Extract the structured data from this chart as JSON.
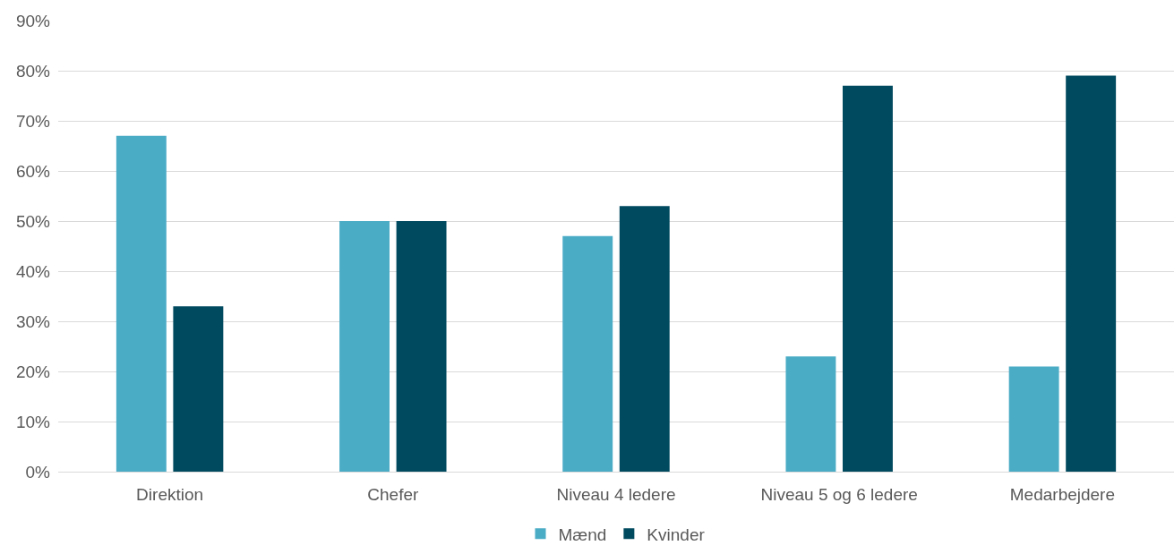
{
  "chart_data": {
    "type": "bar",
    "categories": [
      "Direktion",
      "Chefer",
      "Niveau 4 ledere",
      "Niveau 5 og 6 ledere",
      "Medarbejdere"
    ],
    "series": [
      {
        "name": "Mænd",
        "color": "#4bacc6",
        "values": [
          67,
          50,
          47,
          23,
          21
        ]
      },
      {
        "name": "Kvinder",
        "color": "#004a5f",
        "values": [
          33,
          50,
          53,
          77,
          79
        ]
      }
    ],
    "ylim": [
      0,
      90
    ],
    "yticks": [
      {
        "value": 0,
        "label": "0%"
      },
      {
        "value": 10,
        "label": "10%"
      },
      {
        "value": 20,
        "label": "20%"
      },
      {
        "value": 30,
        "label": "30%"
      },
      {
        "value": 40,
        "label": "40%"
      },
      {
        "value": 50,
        "label": "50%"
      },
      {
        "value": 60,
        "label": "60%"
      },
      {
        "value": 70,
        "label": "70%"
      },
      {
        "value": 80,
        "label": "80%"
      },
      {
        "value": 90,
        "label": "90%"
      }
    ],
    "grid": "y",
    "legend": "bottom"
  }
}
